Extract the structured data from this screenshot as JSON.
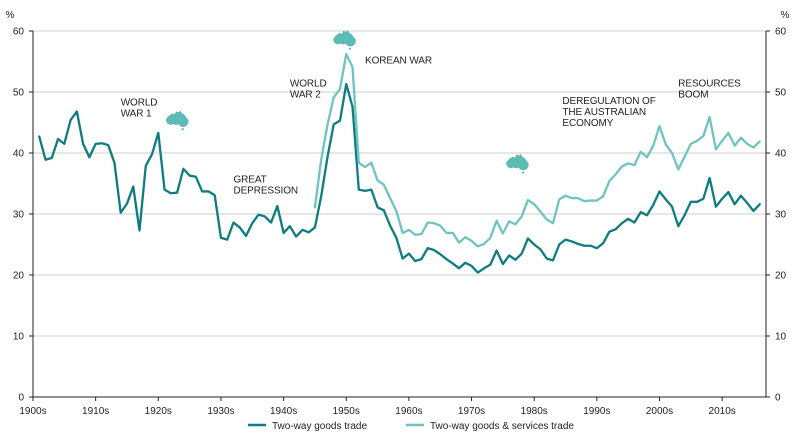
{
  "chart_data": {
    "type": "line",
    "ylim": [
      0,
      60
    ],
    "xlim": [
      1900,
      2017
    ],
    "y_unit_left": "%",
    "y_unit_right": "%",
    "y_ticks": [
      0,
      10,
      20,
      30,
      40,
      50,
      60
    ],
    "x_ticks": [
      {
        "year": 1900,
        "label": "1900s"
      },
      {
        "year": 1910,
        "label": "1910s"
      },
      {
        "year": 1920,
        "label": "1920s"
      },
      {
        "year": 1930,
        "label": "1930s"
      },
      {
        "year": 1940,
        "label": "1940s"
      },
      {
        "year": 1950,
        "label": "1950s"
      },
      {
        "year": 1960,
        "label": "1960s"
      },
      {
        "year": 1970,
        "label": "1970s"
      },
      {
        "year": 1980,
        "label": "1980s"
      },
      {
        "year": 1990,
        "label": "1990s"
      },
      {
        "year": 2000,
        "label": "2000s"
      },
      {
        "year": 2010,
        "label": "2010s"
      }
    ],
    "grid": "horizontal",
    "legend_position": "bottom",
    "series": [
      {
        "name": "Two-way goods trade",
        "color": "#0e7c80",
        "points": [
          [
            1901,
            42.7
          ],
          [
            1902,
            38.9
          ],
          [
            1903,
            39.2
          ],
          [
            1904,
            42.3
          ],
          [
            1905,
            41.5
          ],
          [
            1906,
            45.4
          ],
          [
            1907,
            46.8
          ],
          [
            1908,
            41.5
          ],
          [
            1909,
            39.3
          ],
          [
            1910,
            41.5
          ],
          [
            1911,
            41.6
          ],
          [
            1912,
            41.3
          ],
          [
            1913,
            38.4
          ],
          [
            1914,
            30.2
          ],
          [
            1915,
            31.7
          ],
          [
            1916,
            34.5
          ],
          [
            1917,
            27.3
          ],
          [
            1918,
            37.9
          ],
          [
            1919,
            39.8
          ],
          [
            1920,
            43.3
          ],
          [
            1921,
            34.0
          ],
          [
            1922,
            33.4
          ],
          [
            1923,
            33.5
          ],
          [
            1924,
            37.4
          ],
          [
            1925,
            36.3
          ],
          [
            1926,
            36.1
          ],
          [
            1927,
            33.7
          ],
          [
            1928,
            33.7
          ],
          [
            1929,
            33.1
          ],
          [
            1930,
            26.1
          ],
          [
            1931,
            25.8
          ],
          [
            1932,
            28.6
          ],
          [
            1933,
            27.8
          ],
          [
            1934,
            26.4
          ],
          [
            1935,
            28.5
          ],
          [
            1936,
            29.9
          ],
          [
            1937,
            29.6
          ],
          [
            1938,
            28.6
          ],
          [
            1939,
            31.3
          ],
          [
            1940,
            26.9
          ],
          [
            1941,
            28.0
          ],
          [
            1942,
            26.3
          ],
          [
            1943,
            27.4
          ],
          [
            1944,
            27.0
          ],
          [
            1945,
            27.8
          ],
          [
            1946,
            32.9
          ],
          [
            1947,
            39.3
          ],
          [
            1948,
            44.7
          ],
          [
            1949,
            45.3
          ],
          [
            1950,
            51.3
          ],
          [
            1951,
            47.6
          ],
          [
            1952,
            34.0
          ],
          [
            1953,
            33.8
          ],
          [
            1954,
            34.0
          ],
          [
            1955,
            31.1
          ],
          [
            1956,
            30.6
          ],
          [
            1957,
            28.1
          ],
          [
            1958,
            26.1
          ],
          [
            1959,
            22.7
          ],
          [
            1960,
            23.5
          ],
          [
            1961,
            22.3
          ],
          [
            1962,
            22.6
          ],
          [
            1963,
            24.4
          ],
          [
            1964,
            24.1
          ],
          [
            1965,
            23.4
          ],
          [
            1966,
            22.6
          ],
          [
            1967,
            21.9
          ],
          [
            1968,
            21.1
          ],
          [
            1969,
            22.0
          ],
          [
            1970,
            21.5
          ],
          [
            1971,
            20.4
          ],
          [
            1972,
            21.1
          ],
          [
            1973,
            21.7
          ],
          [
            1974,
            24.0
          ],
          [
            1975,
            21.8
          ],
          [
            1976,
            23.2
          ],
          [
            1977,
            22.5
          ],
          [
            1978,
            23.5
          ],
          [
            1979,
            26.0
          ],
          [
            1980,
            25.0
          ],
          [
            1981,
            24.2
          ],
          [
            1982,
            22.7
          ],
          [
            1983,
            22.4
          ],
          [
            1984,
            25.0
          ],
          [
            1985,
            25.8
          ],
          [
            1986,
            25.5
          ],
          [
            1987,
            25.1
          ],
          [
            1988,
            24.8
          ],
          [
            1989,
            24.8
          ],
          [
            1990,
            24.4
          ],
          [
            1991,
            25.2
          ],
          [
            1992,
            27.1
          ],
          [
            1993,
            27.5
          ],
          [
            1994,
            28.5
          ],
          [
            1995,
            29.2
          ],
          [
            1996,
            28.6
          ],
          [
            1997,
            30.3
          ],
          [
            1998,
            29.8
          ],
          [
            1999,
            31.5
          ],
          [
            2000,
            33.7
          ],
          [
            2001,
            32.4
          ],
          [
            2002,
            31.2
          ],
          [
            2003,
            28.0
          ],
          [
            2004,
            29.8
          ],
          [
            2005,
            32.0
          ],
          [
            2006,
            32.0
          ],
          [
            2007,
            32.5
          ],
          [
            2008,
            35.9
          ],
          [
            2009,
            31.2
          ],
          [
            2010,
            32.5
          ],
          [
            2011,
            33.6
          ],
          [
            2012,
            31.6
          ],
          [
            2013,
            33.0
          ],
          [
            2014,
            31.8
          ],
          [
            2015,
            30.5
          ],
          [
            2016,
            31.6
          ]
        ]
      },
      {
        "name": "Two-way goods & services trade",
        "color": "#6ec4c0",
        "points": [
          [
            1945,
            31.1
          ],
          [
            1946,
            38.9
          ],
          [
            1947,
            44.6
          ],
          [
            1948,
            49.1
          ],
          [
            1949,
            50.5
          ],
          [
            1950,
            56.2
          ],
          [
            1951,
            54.1
          ],
          [
            1952,
            38.4
          ],
          [
            1953,
            37.7
          ],
          [
            1954,
            38.4
          ],
          [
            1955,
            35.5
          ],
          [
            1956,
            34.8
          ],
          [
            1957,
            32.6
          ],
          [
            1958,
            30.5
          ],
          [
            1959,
            26.9
          ],
          [
            1960,
            27.4
          ],
          [
            1961,
            26.6
          ],
          [
            1962,
            26.7
          ],
          [
            1963,
            28.6
          ],
          [
            1964,
            28.5
          ],
          [
            1965,
            28.1
          ],
          [
            1966,
            26.9
          ],
          [
            1967,
            26.9
          ],
          [
            1968,
            25.3
          ],
          [
            1969,
            26.2
          ],
          [
            1970,
            25.6
          ],
          [
            1971,
            24.7
          ],
          [
            1972,
            25.1
          ],
          [
            1973,
            26.1
          ],
          [
            1974,
            28.9
          ],
          [
            1975,
            26.8
          ],
          [
            1976,
            28.8
          ],
          [
            1977,
            28.3
          ],
          [
            1978,
            29.6
          ],
          [
            1979,
            32.3
          ],
          [
            1980,
            31.6
          ],
          [
            1981,
            30.4
          ],
          [
            1982,
            29.1
          ],
          [
            1983,
            28.5
          ],
          [
            1984,
            32.4
          ],
          [
            1985,
            33.0
          ],
          [
            1986,
            32.6
          ],
          [
            1987,
            32.6
          ],
          [
            1988,
            32.1
          ],
          [
            1989,
            32.2
          ],
          [
            1990,
            32.2
          ],
          [
            1991,
            32.9
          ],
          [
            1992,
            35.4
          ],
          [
            1993,
            36.5
          ],
          [
            1994,
            37.8
          ],
          [
            1995,
            38.3
          ],
          [
            1996,
            38.0
          ],
          [
            1997,
            40.2
          ],
          [
            1998,
            39.3
          ],
          [
            1999,
            41.2
          ],
          [
            2000,
            44.4
          ],
          [
            2001,
            41.4
          ],
          [
            2002,
            40.0
          ],
          [
            2003,
            37.3
          ],
          [
            2004,
            39.4
          ],
          [
            2005,
            41.5
          ],
          [
            2006,
            42.0
          ],
          [
            2007,
            42.8
          ],
          [
            2008,
            45.9
          ],
          [
            2009,
            40.6
          ],
          [
            2010,
            42.0
          ],
          [
            2011,
            43.3
          ],
          [
            2012,
            41.2
          ],
          [
            2013,
            42.5
          ],
          [
            2014,
            41.5
          ],
          [
            2015,
            40.9
          ],
          [
            2016,
            41.9
          ]
        ]
      }
    ],
    "annotations": [
      {
        "lines": [
          "WORLD",
          "WAR 1"
        ],
        "year": 1914,
        "value": 47.8
      },
      {
        "lines": [
          "GREAT",
          "DEPRESSION"
        ],
        "year": 1932,
        "value": 35.2
      },
      {
        "lines": [
          "WORLD",
          "WAR 2"
        ],
        "year": 1941,
        "value": 50.9
      },
      {
        "lines": [
          "KOREAN WAR"
        ],
        "year": 1953,
        "value": 54.7
      },
      {
        "lines": [
          "DEREGULATION OF",
          "THE AUSTRALIAN",
          "ECONOMY"
        ],
        "year": 1984.5,
        "value": 48.0
      },
      {
        "lines": [
          "RESOURCES",
          "BOOM"
        ],
        "year": 2003,
        "value": 50.9
      }
    ],
    "australia_markers": [
      {
        "year": 1923,
        "value": 45.6,
        "icon": "australia-map-icon"
      },
      {
        "year": 1949.7,
        "value": 58.8,
        "icon": "australia-map-icon"
      },
      {
        "year": 1977.3,
        "value": 38.5,
        "icon": "australia-map-icon"
      }
    ]
  }
}
